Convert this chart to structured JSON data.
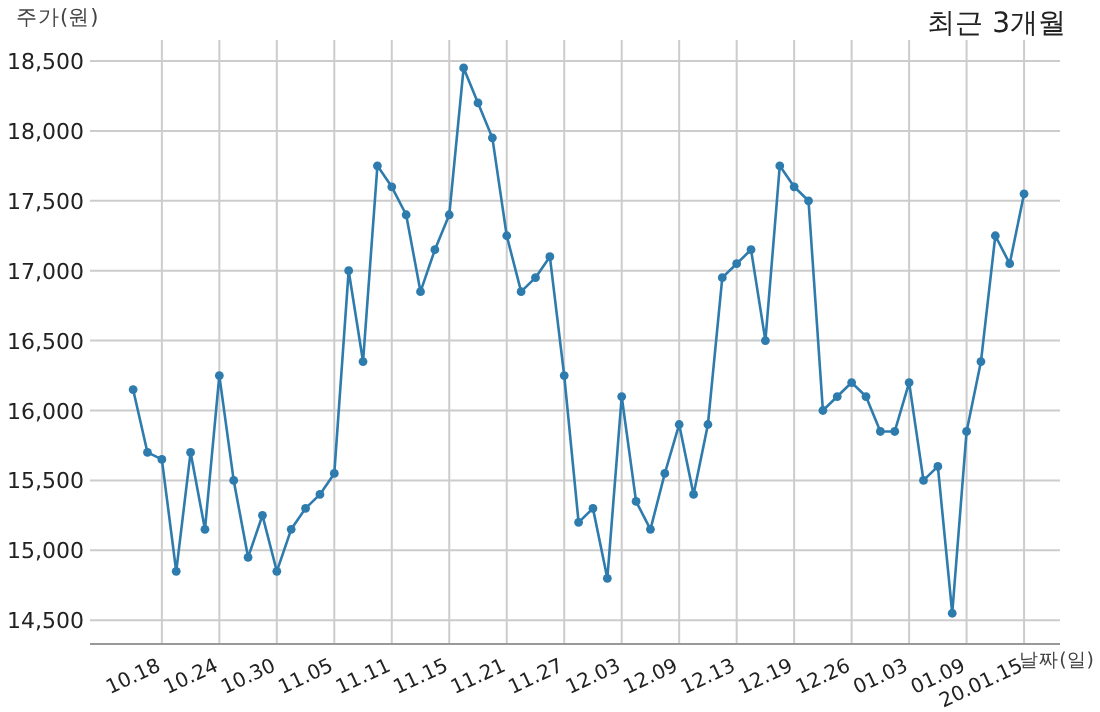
{
  "chart_data": {
    "type": "line",
    "title": "최근 3개월",
    "xlabel": "날짜(일)",
    "ylabel": "주가(원)",
    "categories": [
      null,
      null,
      "10.18",
      null,
      null,
      null,
      "10.24",
      null,
      null,
      null,
      "10.30",
      null,
      null,
      null,
      "11.05",
      null,
      null,
      null,
      "11.11",
      null,
      null,
      null,
      "11.15",
      null,
      null,
      null,
      "11.21",
      null,
      null,
      null,
      "11.27",
      null,
      null,
      null,
      "12.03",
      null,
      null,
      null,
      "12.09",
      null,
      null,
      null,
      "12.13",
      null,
      null,
      null,
      "12.19",
      null,
      null,
      null,
      "12.26",
      null,
      null,
      null,
      "01.03",
      null,
      null,
      null,
      "01.09",
      null,
      null,
      null,
      "20.01.15"
    ],
    "series": [
      {
        "color": "#2e7bad",
        "values": [
          16150,
          15700,
          15650,
          14850,
          15700,
          15150,
          16250,
          15500,
          14950,
          15250,
          14850,
          15150,
          15300,
          15400,
          15550,
          17000,
          16350,
          17750,
          17600,
          17400,
          16850,
          17150,
          17400,
          18450,
          18200,
          17950,
          17250,
          16850,
          16950,
          17100,
          16250,
          15200,
          15300,
          14800,
          16100,
          15350,
          15150,
          15550,
          15900,
          15400,
          15900,
          16950,
          17050,
          17150,
          16500,
          17750,
          17600,
          17500,
          16000,
          16100,
          16200,
          16100,
          15850,
          15850,
          16200,
          15500,
          15600,
          14550,
          15850,
          16350,
          17250,
          17050,
          17550
        ]
      }
    ],
    "ylim": [
      14330,
      18650
    ],
    "yticks": [
      {
        "value": 14500,
        "label": "14,500"
      },
      {
        "value": 15000,
        "label": "15,000"
      },
      {
        "value": 15500,
        "label": "15,500"
      },
      {
        "value": 16000,
        "label": "16,000"
      },
      {
        "value": 16500,
        "label": "16,500"
      },
      {
        "value": 17000,
        "label": "17,000"
      },
      {
        "value": 17500,
        "label": "17,500"
      },
      {
        "value": 18000,
        "label": "18,000"
      },
      {
        "value": 18500,
        "label": "18,500"
      }
    ],
    "grid": true,
    "marker": "circle",
    "line_style": "solid"
  }
}
